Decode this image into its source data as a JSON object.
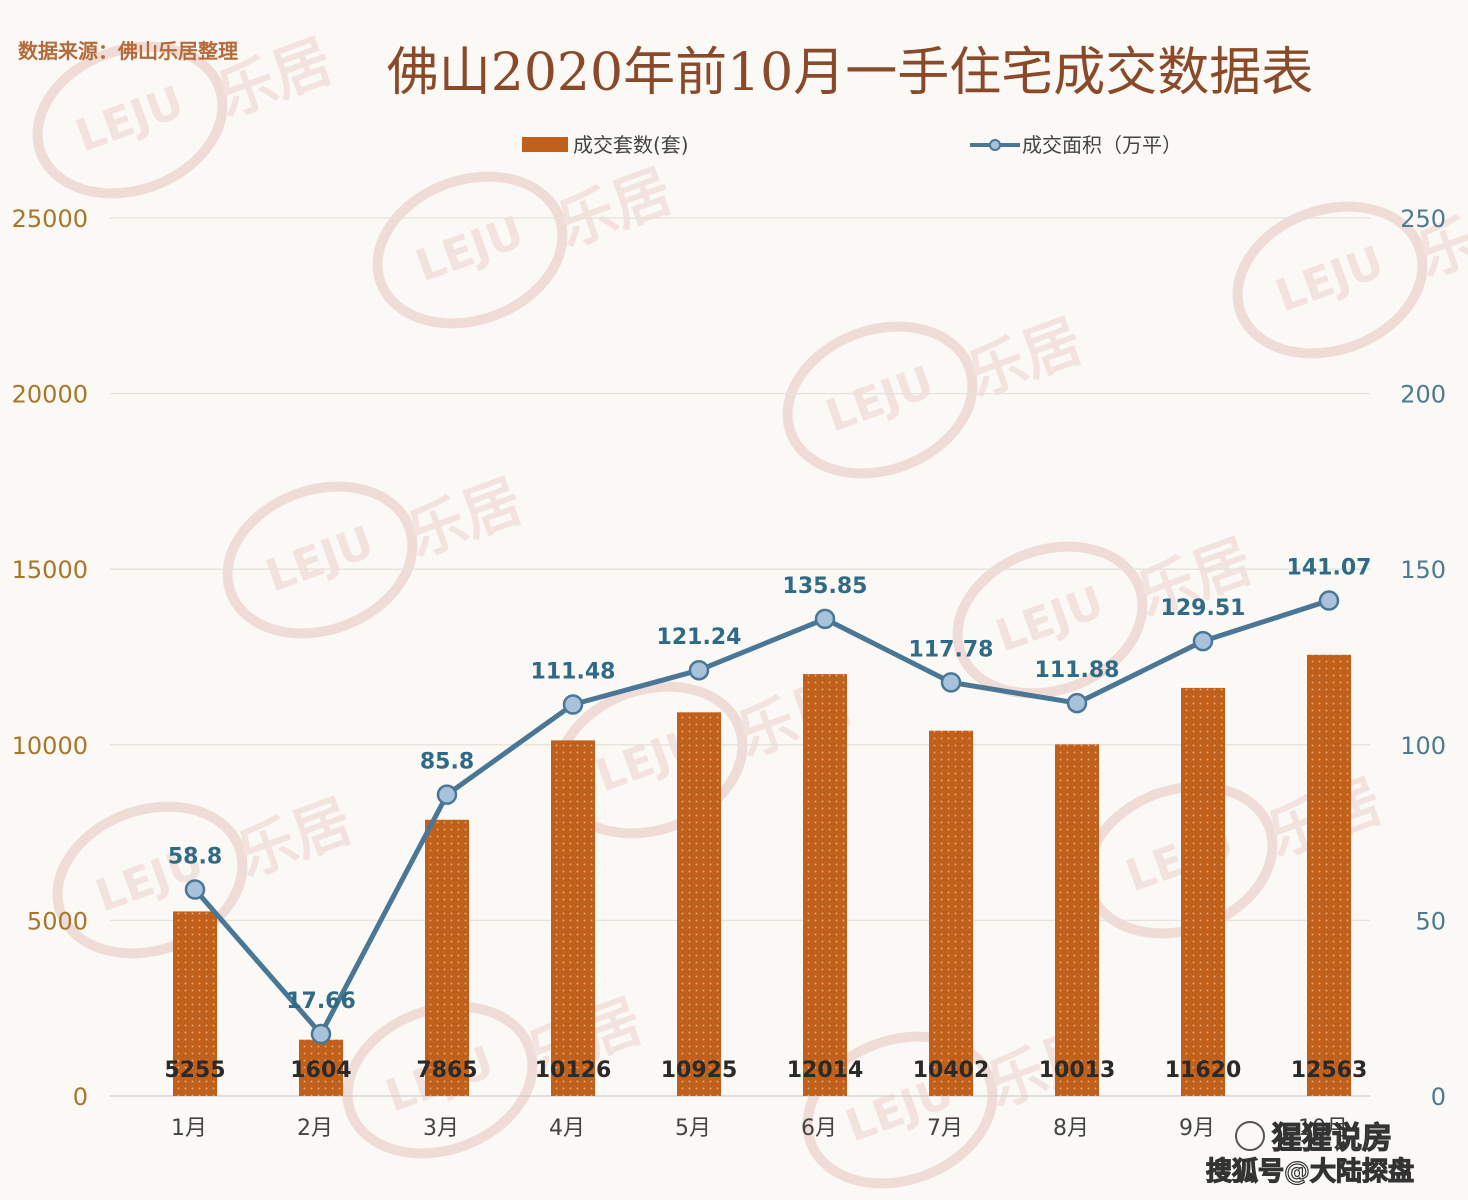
{
  "source_note": "数据来源：佛山乐居整理",
  "colors": {
    "bar": "#c0601a",
    "line": "#4a7796",
    "left_axis_text": "#a8762b",
    "right_axis_text": "#4f7a8e",
    "title": "#8a4a2a",
    "label": "#2f6a86"
  },
  "chart_data": {
    "type": "bar",
    "title": "佛山2020年前10月一手住宅成交数据表",
    "categories": [
      "1月",
      "2月",
      "3月",
      "4月",
      "5月",
      "6月",
      "7月",
      "8月",
      "9月",
      "10月"
    ],
    "series": [
      {
        "name": "成交套数(套)",
        "type": "bar",
        "axis": "left",
        "values": [
          5255,
          1604,
          7865,
          10126,
          10925,
          12014,
          10402,
          10013,
          11620,
          12563
        ]
      },
      {
        "name": "成交面积（万平）",
        "type": "line",
        "axis": "right",
        "values": [
          58.8,
          17.66,
          85.8,
          111.48,
          121.24,
          135.85,
          117.78,
          111.88,
          129.51,
          141.07
        ]
      }
    ],
    "left_axis": {
      "ylim": [
        0,
        25000
      ],
      "ticks": [
        0,
        5000,
        10000,
        15000,
        20000,
        25000
      ]
    },
    "right_axis": {
      "ylim": [
        0,
        250
      ],
      "ticks": [
        0,
        50,
        100,
        150,
        200,
        250
      ]
    },
    "legend_position": "top",
    "grid": true
  },
  "watermark": {
    "logo_text": "LEJU",
    "brand_text": "乐居",
    "corner_lines": [
      "猩猩说房",
      "搜狐号@大陆探盘"
    ]
  }
}
